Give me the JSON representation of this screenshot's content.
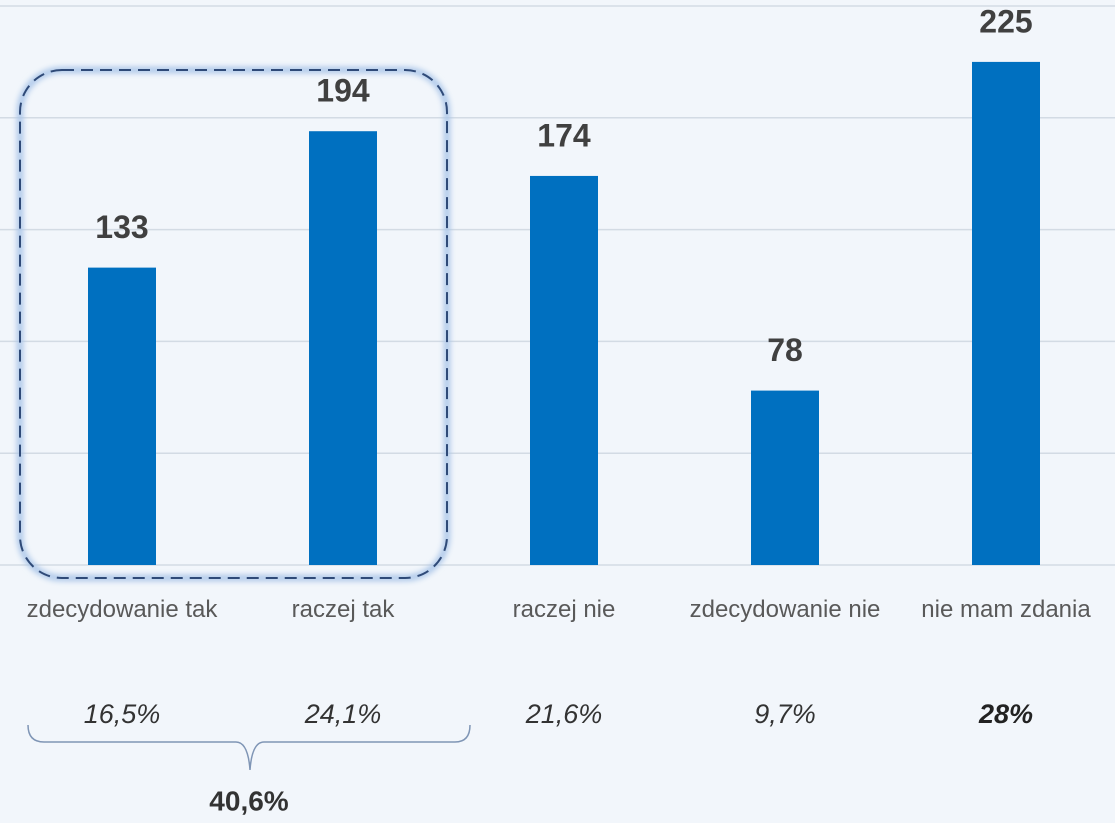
{
  "chart_data": {
    "type": "bar",
    "categories": [
      "zdecydowanie tak",
      "raczej tak",
      "raczej nie",
      "zdecydowanie nie",
      "nie mam zdania"
    ],
    "values": [
      133,
      194,
      174,
      78,
      225
    ],
    "color": "#0070c0",
    "ylim": [
      0,
      250
    ],
    "yticks": [
      0,
      50,
      100,
      150,
      200,
      250
    ],
    "grid": true,
    "share_labels": [
      "16,5%",
      "24,1%",
      "21,6%",
      "9,7%",
      "28%"
    ],
    "group_label": "40,6%"
  }
}
